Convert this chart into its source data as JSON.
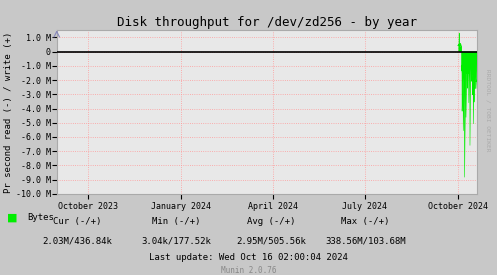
{
  "title": "Disk throughput for /dev/zd256 - by year",
  "ylabel": "Pr second read (-) / write (+)",
  "fig_bg_color": "#c8c8c8",
  "plot_bg_color": "#e8e8e8",
  "grid_color": "#ff9999",
  "border_color": "#aaaaaa",
  "line_color": "#00ee00",
  "zero_line_color": "#000000",
  "ylim": [
    -10000000,
    1500000
  ],
  "yticks": [
    -10000000,
    -9000000,
    -8000000,
    -7000000,
    -6000000,
    -5000000,
    -4000000,
    -3000000,
    -2000000,
    -1000000,
    0,
    1000000
  ],
  "ytick_labels": [
    "-10.0 M",
    "-9.0 M",
    "-8.0 M",
    "-7.0 M",
    "-6.0 M",
    "-5.0 M",
    "-4.0 M",
    "-3.0 M",
    "-2.0 M",
    "-1.0 M",
    "0",
    "1.0 M"
  ],
  "xstart": 1693526400,
  "xend": 1729382400,
  "xtick_positions": [
    1696118400,
    1704067200,
    1711929600,
    1719792000,
    1727740800
  ],
  "xtick_labels": [
    "October 2023",
    "January 2024",
    "April 2024",
    "July 2024",
    "October 2024"
  ],
  "legend_label": "Bytes",
  "cur_neg": "2.03M",
  "cur_pos": "436.84k",
  "min_neg": "3.04k",
  "min_pos": "177.52k",
  "avg_neg": "2.95M",
  "avg_pos": "505.56k",
  "max_neg": "338.56M",
  "max_pos": "103.68M",
  "last_update": "Last update: Wed Oct 16 02:00:04 2024",
  "munin_version": "Munin 2.0.76",
  "rrdtool_label": "RRDTOOL / TOBI OETIKER",
  "activity_start": 1727740800,
  "title_fontsize": 9,
  "label_fontsize": 6.5,
  "tick_fontsize": 6,
  "legend_fontsize": 6.5
}
